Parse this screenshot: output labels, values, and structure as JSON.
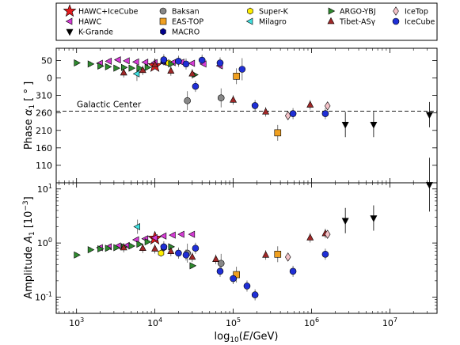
{
  "chart_data": [
    {
      "type": "scatter",
      "panel": "phase",
      "xlabel": "log10(E/GeV)",
      "ylabel": "Phase α1 [ ° ]",
      "xscale": "log",
      "xlim": [
        550,
        40000000
      ],
      "ylim": [
        85,
        60
      ],
      "ytick_values": [
        50,
        0,
        310,
        260,
        210,
        160,
        110
      ],
      "ytick_labels": [
        "50",
        "0",
        "310",
        "260",
        "210",
        "160",
        "110"
      ],
      "grid": false,
      "annotation": {
        "text": "Galactic Center",
        "y": 265
      },
      "series": [
        {
          "name": "HAWC+IceCube",
          "points": [
            [
              10000,
              35
            ]
          ]
        },
        {
          "name": "HAWC",
          "points": [
            [
              2000,
              42
            ],
            [
              2600,
              48
            ],
            [
              3400,
              52
            ],
            [
              4400,
              49
            ],
            [
              5800,
              46
            ],
            [
              7600,
              45
            ],
            [
              10000,
              44
            ],
            [
              13000,
              45
            ],
            [
              17000,
              44
            ],
            [
              22000,
              45
            ],
            [
              30000,
              42
            ],
            [
              42000,
              40
            ],
            [
              68000,
              35
            ]
          ]
        },
        {
          "name": "K-Grande",
          "points": [
            [
              2700000,
              227
            ],
            [
              6200000,
              227
            ],
            [
              32000000,
              255
            ]
          ]
        },
        {
          "name": "Baksan",
          "points": [
            [
              26000,
              295
            ],
            [
              70000,
              303
            ]
          ]
        },
        {
          "name": "EAS-TOP",
          "points": [
            [
              110000,
              5
            ],
            [
              370000,
              203
            ]
          ]
        },
        {
          "name": "MACRO",
          "points": [
            [
              13000,
              47
            ]
          ]
        },
        {
          "name": "Super-K",
          "points": [
            [
              15000,
              43
            ]
          ]
        },
        {
          "name": "Milagro",
          "points": [
            [
              5900,
              12
            ]
          ]
        },
        {
          "name": "ARGO-YBJ",
          "points": [
            [
              1000,
              43
            ],
            [
              1500,
              40
            ],
            [
              2000,
              34
            ],
            [
              2500,
              32
            ],
            [
              3200,
              28
            ],
            [
              4000,
              30
            ],
            [
              5000,
              28
            ],
            [
              6300,
              28
            ],
            [
              8000,
              30
            ],
            [
              16000,
              40
            ],
            [
              32000,
              9
            ]
          ]
        },
        {
          "name": "Tibet-ASγ",
          "points": [
            [
              4000,
              15
            ],
            [
              7000,
              22
            ],
            [
              10000,
              38
            ],
            [
              16000,
              20
            ],
            [
              30000,
              12
            ],
            [
              100000,
              297
            ],
            [
              260000,
              263
            ],
            [
              960000,
              283
            ]
          ]
        },
        {
          "name": "IceTop",
          "points": [
            [
              500000,
              252
            ],
            [
              1600000,
              280
            ]
          ]
        },
        {
          "name": "IceCube",
          "points": [
            [
              13000,
              52
            ],
            [
              20000,
              48
            ],
            [
              25000,
              40
            ],
            [
              33000,
              336
            ],
            [
              40000,
              51
            ],
            [
              68000,
              43
            ],
            [
              130000,
              25
            ],
            [
              190000,
              281
            ],
            [
              580000,
              258
            ],
            [
              1500000,
              258
            ]
          ]
        }
      ]
    },
    {
      "type": "scatter",
      "panel": "amplitude",
      "xlabel": "log10(E/GeV)",
      "ylabel": "Amplitude A1 [10^-3]",
      "xscale": "log",
      "yscale": "log",
      "xlim": [
        550,
        40000000
      ],
      "ylim": [
        0.05,
        13
      ],
      "ytick_values": [
        0.1,
        1,
        10
      ],
      "ytick_labels": [
        "10^-1",
        "10^0",
        "10^1"
      ],
      "xtick_values": [
        1000,
        10000,
        100000,
        1000000,
        10000000
      ],
      "xtick_labels": [
        "10^3",
        "10^4",
        "10^5",
        "10^6",
        "10^7"
      ],
      "grid": false,
      "series": [
        {
          "name": "HAWC+IceCube",
          "points": [
            [
              10000,
              1.22
            ]
          ]
        },
        {
          "name": "HAWC",
          "points": [
            [
              2000,
              0.82
            ],
            [
              2600,
              0.85
            ],
            [
              3400,
              0.88
            ],
            [
              4400,
              0.9
            ],
            [
              5800,
              1.15
            ],
            [
              7600,
              1.2
            ],
            [
              10000,
              1.25
            ],
            [
              13000,
              1.35
            ],
            [
              17000,
              1.4
            ],
            [
              22000,
              1.45
            ],
            [
              30000,
              1.45
            ]
          ]
        },
        {
          "name": "K-Grande",
          "points": [
            [
              2700000,
              2.6
            ],
            [
              6200000,
              2.9
            ],
            [
              32000000,
              12.0
            ]
          ]
        },
        {
          "name": "Baksan",
          "points": [
            [
              26000,
              0.65
            ],
            [
              70000,
              0.42
            ]
          ]
        },
        {
          "name": "EAS-TOP",
          "points": [
            [
              110000,
              0.26
            ],
            [
              370000,
              0.62
            ]
          ]
        },
        {
          "name": "MACRO",
          "points": [
            [
              13000,
              0.82
            ]
          ]
        },
        {
          "name": "Super-K",
          "points": [
            [
              12000,
              0.65
            ]
          ]
        },
        {
          "name": "Milagro",
          "points": [
            [
              6000,
              2.0
            ]
          ]
        },
        {
          "name": "ARGO-YBJ",
          "points": [
            [
              1000,
              0.6
            ],
            [
              1500,
              0.75
            ],
            [
              2000,
              0.78
            ],
            [
              2500,
              0.8
            ],
            [
              3200,
              0.82
            ],
            [
              4000,
              0.85
            ],
            [
              5000,
              0.88
            ],
            [
              6300,
              0.95
            ],
            [
              8000,
              1.05
            ],
            [
              16000,
              0.85
            ],
            [
              30000,
              0.38
            ]
          ]
        },
        {
          "name": "Tibet-ASγ",
          "points": [
            [
              4000,
              0.82
            ],
            [
              7000,
              0.8
            ],
            [
              10000,
              0.78
            ],
            [
              16000,
              0.7
            ],
            [
              30000,
              0.55
            ],
            [
              60000,
              0.5
            ],
            [
              260000,
              0.6
            ],
            [
              960000,
              1.25
            ],
            [
              1500000,
              1.5
            ]
          ]
        },
        {
          "name": "IceTop",
          "points": [
            [
              500000,
              0.55
            ],
            [
              1600000,
              1.45
            ]
          ]
        },
        {
          "name": "IceCube",
          "points": [
            [
              13000,
              0.85
            ],
            [
              20000,
              0.65
            ],
            [
              25000,
              0.6
            ],
            [
              33000,
              0.8
            ],
            [
              68000,
              0.3
            ],
            [
              100000,
              0.22
            ],
            [
              150000,
              0.16
            ],
            [
              190000,
              0.11
            ],
            [
              580000,
              0.3
            ],
            [
              1500000,
              0.62
            ]
          ]
        }
      ]
    }
  ],
  "legend": {
    "placement": "top",
    "entries": [
      {
        "label": "HAWC+IceCube",
        "marker": "star",
        "color": "#e31a1c"
      },
      {
        "label": "HAWC",
        "marker": "triangle-left",
        "color": "#d63bd6"
      },
      {
        "label": "K-Grande",
        "marker": "triangle-down",
        "color": "#000000"
      },
      {
        "label": "Baksan",
        "marker": "circle",
        "color": "#888888"
      },
      {
        "label": "EAS-TOP",
        "marker": "square",
        "color": "#f0a020"
      },
      {
        "label": "MACRO",
        "marker": "hexagon",
        "color": "#00008b"
      },
      {
        "label": "Super-K",
        "marker": "hexagon",
        "color": "#ffee00"
      },
      {
        "label": "Milagro",
        "marker": "triangle-left",
        "color": "#40e0e0"
      },
      {
        "label": "ARGO-YBJ",
        "marker": "triangle-right",
        "color": "#2e8b2e"
      },
      {
        "label": "Tibet-ASγ",
        "marker": "triangle-up",
        "color": "#a02828"
      },
      {
        "label": "IceTop",
        "marker": "diamond",
        "color": "#f4c2c8"
      },
      {
        "label": "IceCube",
        "marker": "circle",
        "color": "#1f2fd6"
      }
    ]
  }
}
